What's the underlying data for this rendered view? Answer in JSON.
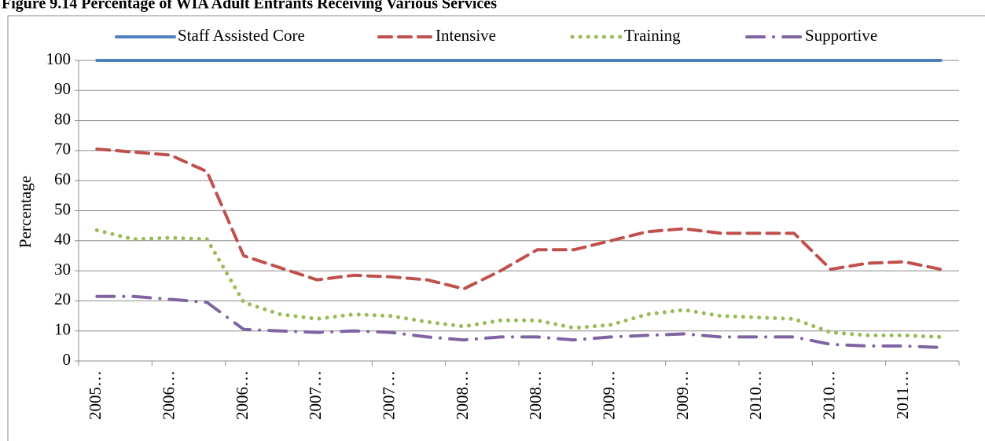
{
  "chart_data": {
    "type": "line",
    "title": "Figure 9.14 Percentage of WIA Adult Entrants Receiving Various Services",
    "y_label": "Percentage",
    "categories": [
      "2005…",
      null,
      "2006…",
      null,
      "2006…",
      null,
      "2007…",
      null,
      "2007…",
      null,
      "2008…",
      null,
      "2008…",
      null,
      "2009…",
      null,
      "2009…",
      null,
      "2010…",
      null,
      "2010…",
      null,
      "2011…",
      null
    ],
    "series": [
      {
        "name": "Staff Assisted Core",
        "color": "#4f81bd",
        "dash": "solid",
        "values": [
          100,
          100,
          100,
          100,
          100,
          100,
          100,
          100,
          100,
          100,
          100,
          100,
          100,
          100,
          100,
          100,
          100,
          100,
          100,
          100,
          100,
          100,
          100,
          100
        ]
      },
      {
        "name": "Intensive",
        "color": "#c0504d",
        "dash": "dashed",
        "values": [
          70.5,
          69.5,
          68.5,
          63,
          35,
          31,
          27,
          28.5,
          28,
          27,
          24,
          30,
          37,
          37,
          40,
          43,
          44,
          42.5,
          42.5,
          42.5,
          30.5,
          32.5,
          33,
          30.5
        ]
      },
      {
        "name": "Training",
        "color": "#9bbb59",
        "dash": "dotted",
        "values": [
          43.5,
          40.5,
          41,
          40.5,
          19.5,
          15.5,
          14,
          15.5,
          15,
          13,
          11.5,
          13.5,
          13.5,
          11,
          12,
          15.5,
          17,
          15,
          14.5,
          14,
          9.5,
          8.5,
          8.5,
          8
        ]
      },
      {
        "name": "Supportive",
        "color": "#8064a2",
        "dash": "dashdot",
        "values": [
          21.5,
          21.5,
          20.5,
          19.5,
          10.5,
          10,
          9.5,
          10,
          9.5,
          8,
          7,
          8,
          8,
          7,
          8,
          8.5,
          9,
          8,
          8,
          8,
          5.5,
          5,
          5,
          4.5
        ]
      }
    ],
    "ylim": [
      0,
      100
    ],
    "yticks": [
      0,
      10,
      20,
      30,
      40,
      50,
      60,
      70,
      80,
      90,
      100
    ],
    "grid": true,
    "legend": "top"
  }
}
